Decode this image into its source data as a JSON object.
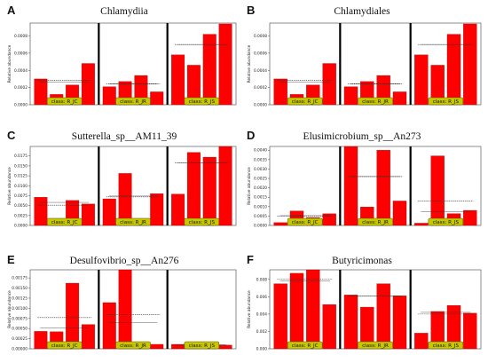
{
  "chart_data": [
    {
      "type": "bar",
      "panel_label": "A",
      "title": "Chlamydiia",
      "ylabel": "Relative abundance",
      "ylim": [
        0,
        0.00095
      ],
      "yticks": [
        "0.0000",
        "0.0002",
        "0.0004",
        "0.0006",
        "0.0008"
      ],
      "groups": [
        {
          "label": "class: R_JC",
          "values": [
            0.0003,
            0.00012,
            0.00023,
            0.00048
          ],
          "mean": 0.000285,
          "median": 0.000265
        },
        {
          "label": "class: R_JR",
          "values": [
            0.00021,
            0.00027,
            0.00034,
            0.00015
          ],
          "mean": 0.000245,
          "median": 0.00024
        },
        {
          "label": "class: R_JS",
          "values": [
            0.00058,
            0.00046,
            0.00082,
            0.00094
          ],
          "mean": 0.0007,
          "median": 0.0007
        }
      ]
    },
    {
      "type": "bar",
      "panel_label": "B",
      "title": "Chlamydiales",
      "ylabel": "Relative abundance",
      "ylim": [
        0,
        0.00095
      ],
      "yticks": [
        "0.0000",
        "0.0002",
        "0.0004",
        "0.0006",
        "0.0008"
      ],
      "groups": [
        {
          "label": "class: R_JC",
          "values": [
            0.0003,
            0.00012,
            0.00023,
            0.00048
          ],
          "mean": 0.000285,
          "median": 0.000265
        },
        {
          "label": "class: R_JR",
          "values": [
            0.00021,
            0.00027,
            0.00034,
            0.00015
          ],
          "mean": 0.000245,
          "median": 0.00024
        },
        {
          "label": "class: R_JS",
          "values": [
            0.00058,
            0.00046,
            0.00082,
            0.00094
          ],
          "mean": 0.0007,
          "median": 0.0007
        }
      ]
    },
    {
      "type": "bar",
      "panel_label": "C",
      "title": "Sutterella_sp__AM11_39",
      "ylabel": "Relative abundance",
      "ylim": [
        0,
        0.0199
      ],
      "yticks": [
        "0.0000",
        "0.0025",
        "0.0050",
        "0.0075",
        "0.0100",
        "0.0125",
        "0.0150",
        "0.0175"
      ],
      "groups": [
        {
          "label": "class: R_JC",
          "values": [
            0.0071,
            0.0017,
            0.0063,
            0.0054
          ],
          "mean": 0.0051,
          "median": 0.0058
        },
        {
          "label": "class: R_JR",
          "values": [
            0.0067,
            0.0131,
            0.0011,
            0.008
          ],
          "mean": 0.0072,
          "median": 0.0074
        },
        {
          "label": "class: R_JS",
          "values": [
            0.0079,
            0.0184,
            0.0172,
            0.0199
          ],
          "mean": 0.0158,
          "median": 0.0158
        }
      ]
    },
    {
      "type": "bar",
      "panel_label": "D",
      "title": "Elusimicrobium_sp__An273",
      "ylabel": "Relative abundance",
      "ylim": [
        0,
        0.0042
      ],
      "yticks": [
        "0.0000",
        "0.0005",
        "0.0010",
        "0.0015",
        "0.0020",
        "0.0025",
        "0.0030",
        "0.0035",
        "0.0040"
      ],
      "groups": [
        {
          "label": "class: R_JC",
          "values": [
            0.00015,
            0.00077,
            0.00042,
            0.00062
          ],
          "mean": 0.0005,
          "median": 0.00052
        },
        {
          "label": "class: R_JR",
          "values": [
            0.0042,
            0.00098,
            0.004,
            0.0013
          ],
          "mean": 0.0026,
          "median": 0.0026
        },
        {
          "label": "class: R_JS",
          "values": [
            0.00012,
            0.0037,
            0.00063,
            0.0008
          ],
          "mean": 0.0013,
          "median": 0.00072
        }
      ]
    },
    {
      "type": "bar",
      "panel_label": "E",
      "title": "Desulfovibrio_sp__An276",
      "ylabel": "Relative abundance",
      "ylim": [
        0,
        0.00195
      ],
      "yticks": [
        "0.00000",
        "0.00025",
        "0.00050",
        "0.00075",
        "0.00100",
        "0.00125",
        "0.00150",
        "0.00175"
      ],
      "groups": [
        {
          "label": "class: R_JC",
          "values": [
            0.00043,
            0.00042,
            0.00162,
            0.0006
          ],
          "mean": 0.00077,
          "median": 0.00052
        },
        {
          "label": "class: R_JR",
          "values": [
            0.00114,
            0.00195,
            0.00016,
            0.00011
          ],
          "mean": 0.00084,
          "median": 0.00065
        },
        {
          "label": "class: R_JS",
          "values": [
            0.00011,
            0.00011,
            6e-05,
            9e-05
          ],
          "mean": 9e-05,
          "median": 0.0001
        }
      ]
    },
    {
      "type": "bar",
      "panel_label": "F",
      "title": "Butyricimonas",
      "ylabel": "Relative abundance",
      "ylim": [
        0,
        0.0091
      ],
      "yticks": [
        "0.000",
        "0.002",
        "0.004",
        "0.006",
        "0.008"
      ],
      "groups": [
        {
          "label": "class: R_JC",
          "values": [
            0.0075,
            0.0087,
            0.0091,
            0.0051
          ],
          "mean": 0.008,
          "median": 0.0078
        },
        {
          "label": "class: R_JR",
          "values": [
            0.0062,
            0.0048,
            0.0075,
            0.0061
          ],
          "mean": 0.0061,
          "median": 0.0061
        },
        {
          "label": "class: R_JS",
          "values": [
            0.0018,
            0.0043,
            0.005,
            0.0041
          ],
          "mean": 0.004,
          "median": 0.0042
        }
      ]
    }
  ],
  "colors": {
    "bar": "#ff0000",
    "bar_edge": "#990000",
    "divider": "#000000",
    "label_box": "#c8c800",
    "label_box_edge": "#555500",
    "mean_line": "#333333",
    "median_line": "#333333"
  }
}
